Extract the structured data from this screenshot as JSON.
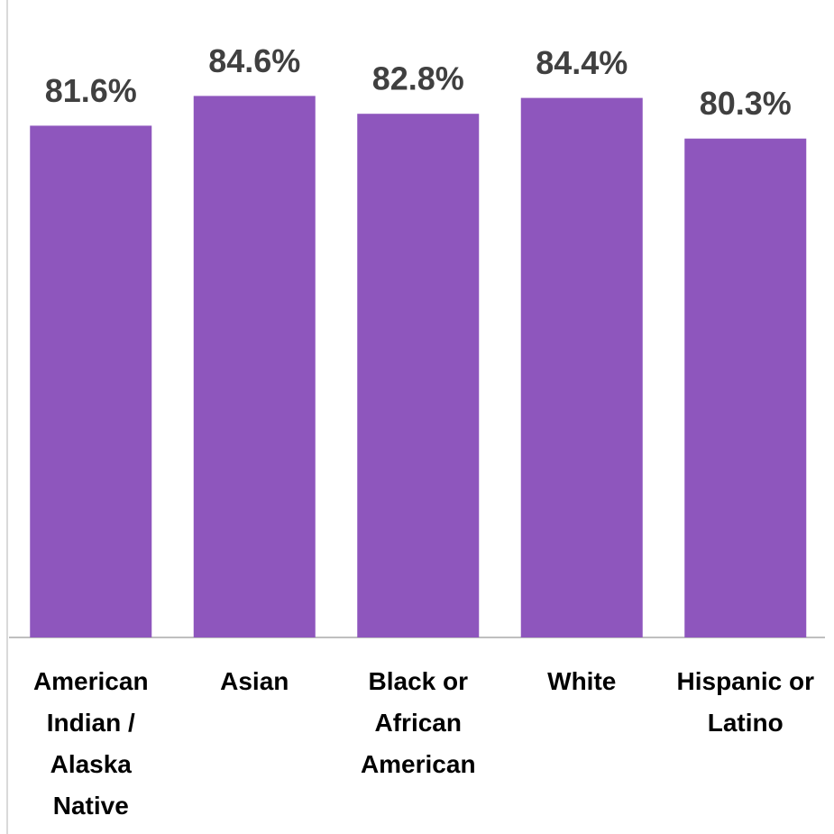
{
  "chart_data": {
    "type": "bar",
    "categories": [
      "American Indian / Alaska Native",
      "Asian",
      "Black or African American",
      "White",
      "Hispanic or Latino"
    ],
    "values": [
      81.6,
      84.6,
      82.8,
      84.4,
      80.3
    ],
    "value_labels": [
      "81.6%",
      "84.6%",
      "82.8%",
      "84.4%",
      "80.3%"
    ],
    "color": "#8e56bd",
    "ylim": [
      30,
      90
    ]
  }
}
